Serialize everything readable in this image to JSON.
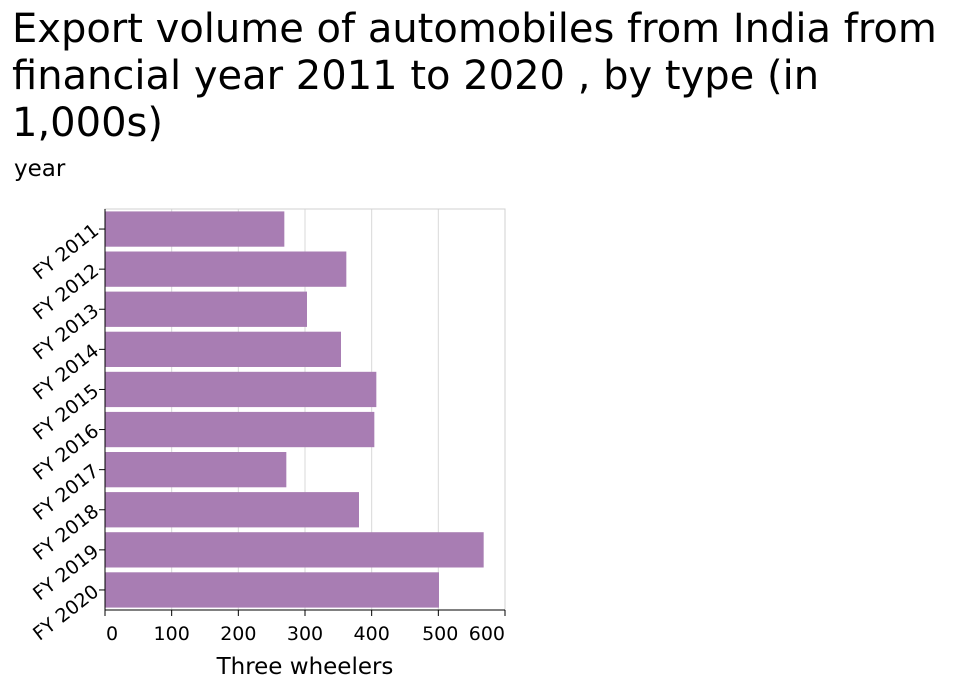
{
  "chart_data": {
    "type": "bar",
    "orientation": "horizontal",
    "title": "Export volume of automobiles from India from financial year 2011 to 2020 , by type (in 1,000s)",
    "ylabel": "year",
    "xlabel": "Three wheelers",
    "categories": [
      "FY 2011",
      "FY 2012",
      "FY 2013",
      "FY 2014",
      "FY 2015",
      "FY 2016",
      "FY 2017",
      "FY 2018",
      "FY 2019",
      "FY 2020"
    ],
    "values": [
      269,
      362,
      303,
      354,
      407,
      404,
      272,
      381,
      568,
      501
    ],
    "xlim": [
      0,
      600
    ],
    "xticks": [
      0,
      100,
      200,
      300,
      400,
      500,
      600
    ],
    "grid": "vertical",
    "bar_color": "#a87db3"
  }
}
